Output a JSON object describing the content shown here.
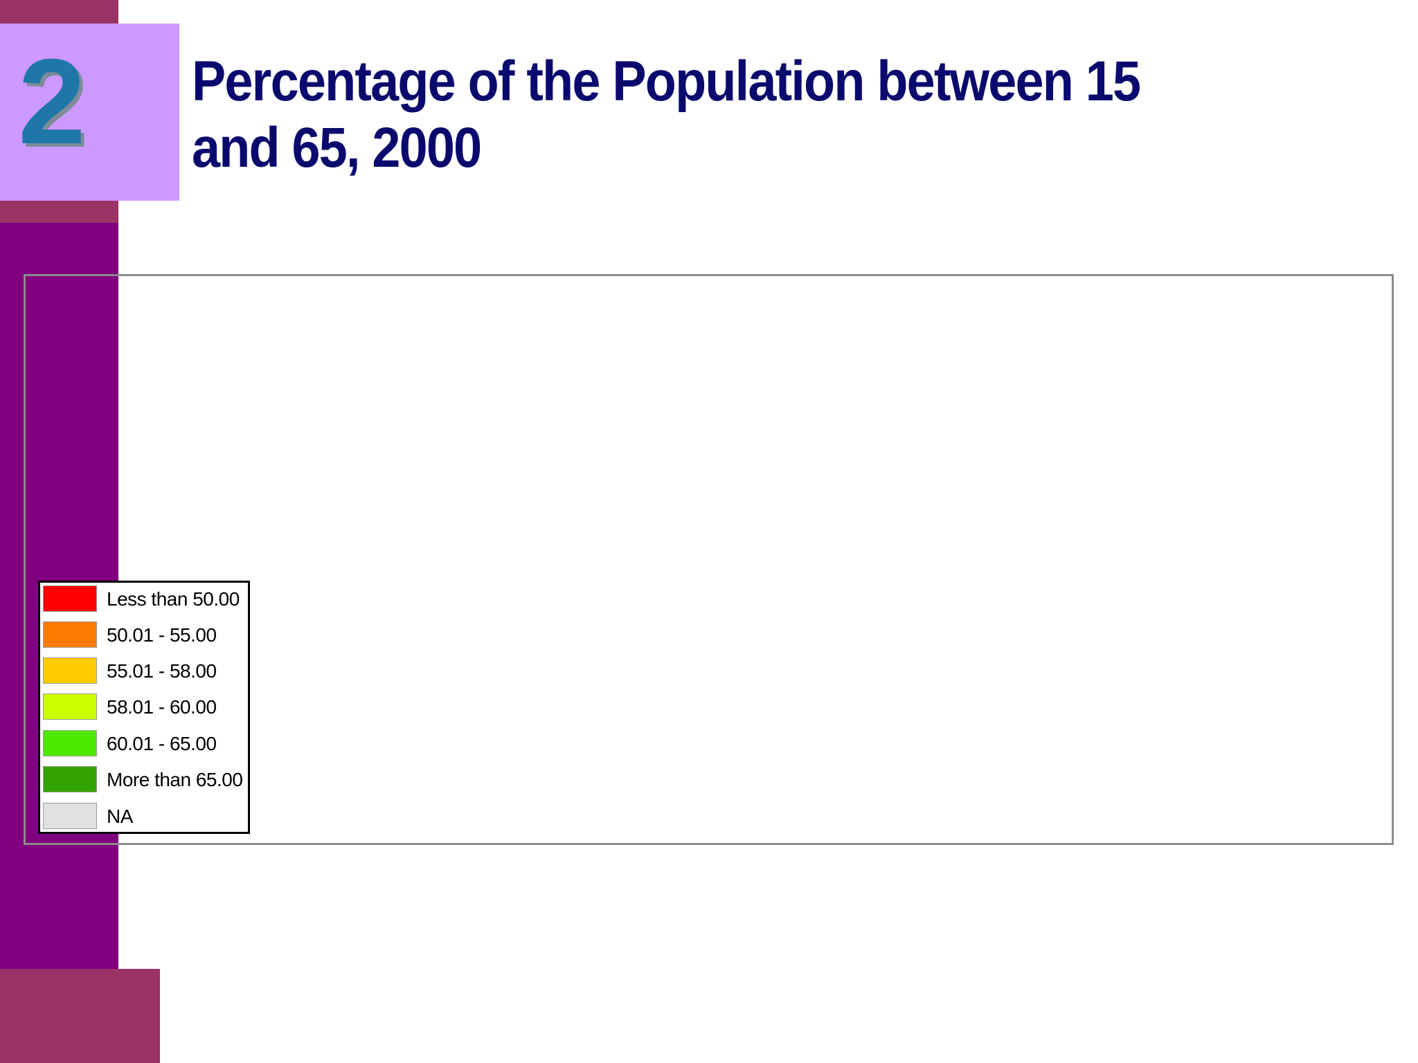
{
  "slide": {
    "number": "2",
    "title": "Percentage of the Population between 15 and 65, 2000"
  },
  "legend": {
    "items": [
      {
        "label": "Less than 50.00",
        "color": "#ff0000"
      },
      {
        "label": "50.01 - 55.00",
        "color": "#ff7b00"
      },
      {
        "label": "55.01 - 58.00",
        "color": "#ffcc00"
      },
      {
        "label": "58.01 - 60.00",
        "color": "#ccff00"
      },
      {
        "label": "60.01 - 65.00",
        "color": "#4de800"
      },
      {
        "label": "More than 65.00",
        "color": "#33a300"
      },
      {
        "label": "NA",
        "color": "#e0e0e0"
      }
    ]
  },
  "colors": {
    "sidebar": "#800080",
    "sidebar_accent": "#993366",
    "number_box": "#cc99ff",
    "title": "#0a0a6e"
  }
}
